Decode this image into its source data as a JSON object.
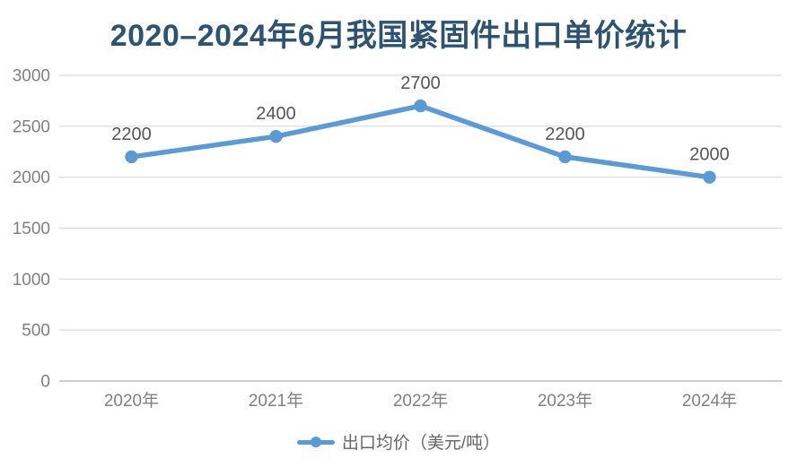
{
  "page": {
    "background": "#ffffff"
  },
  "chart_data": {
    "type": "line",
    "title": "2020–2024年6月我国紧固件出口单价统计",
    "categories": [
      "2020年",
      "2021年",
      "2022年",
      "2023年",
      "2024年"
    ],
    "series": [
      {
        "name": "出口均价（美元/吨）",
        "values": [
          2200,
          2400,
          2700,
          2200,
          2000
        ]
      }
    ],
    "data_labels": [
      "2200",
      "2400",
      "2700",
      "2200",
      "2000"
    ],
    "ytick_labels": [
      "0",
      "500",
      "1000",
      "1500",
      "2000",
      "2500",
      "3000"
    ],
    "ylim": [
      0,
      3000
    ],
    "ytick_step": 500,
    "grid": true,
    "legend_position": "bottom",
    "colors": {
      "line": "#5b9bd5",
      "marker": "#5b9bd5",
      "title": "#2c5472",
      "axis_tick_label": "#808080",
      "data_label": "#555555",
      "gridline": "#d9d9d9",
      "axis_line": "#bfbfbf",
      "legend_text": "#666666",
      "background": "#ffffff"
    }
  }
}
